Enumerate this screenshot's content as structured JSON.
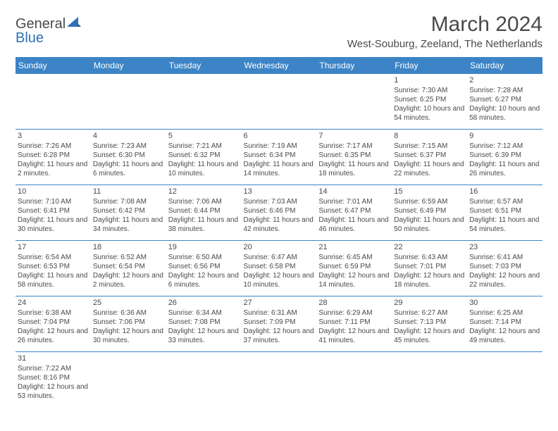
{
  "header": {
    "logo_general": "General",
    "logo_blue": "Blue",
    "month_title": "March 2024",
    "location": "West-Souburg, Zeeland, The Netherlands"
  },
  "colors": {
    "header_bg": "#3c84c6",
    "header_text": "#ffffff",
    "body_text": "#4a4a4a",
    "rule": "#3c84c6",
    "logo_blue": "#2e6fb5"
  },
  "weekdays": [
    "Sunday",
    "Monday",
    "Tuesday",
    "Wednesday",
    "Thursday",
    "Friday",
    "Saturday"
  ],
  "weeks": [
    [
      null,
      null,
      null,
      null,
      null,
      {
        "day": "1",
        "sunrise": "Sunrise: 7:30 AM",
        "sunset": "Sunset: 6:25 PM",
        "daylight": "Daylight: 10 hours and 54 minutes."
      },
      {
        "day": "2",
        "sunrise": "Sunrise: 7:28 AM",
        "sunset": "Sunset: 6:27 PM",
        "daylight": "Daylight: 10 hours and 58 minutes."
      }
    ],
    [
      {
        "day": "3",
        "sunrise": "Sunrise: 7:26 AM",
        "sunset": "Sunset: 6:28 PM",
        "daylight": "Daylight: 11 hours and 2 minutes."
      },
      {
        "day": "4",
        "sunrise": "Sunrise: 7:23 AM",
        "sunset": "Sunset: 6:30 PM",
        "daylight": "Daylight: 11 hours and 6 minutes."
      },
      {
        "day": "5",
        "sunrise": "Sunrise: 7:21 AM",
        "sunset": "Sunset: 6:32 PM",
        "daylight": "Daylight: 11 hours and 10 minutes."
      },
      {
        "day": "6",
        "sunrise": "Sunrise: 7:19 AM",
        "sunset": "Sunset: 6:34 PM",
        "daylight": "Daylight: 11 hours and 14 minutes."
      },
      {
        "day": "7",
        "sunrise": "Sunrise: 7:17 AM",
        "sunset": "Sunset: 6:35 PM",
        "daylight": "Daylight: 11 hours and 18 minutes."
      },
      {
        "day": "8",
        "sunrise": "Sunrise: 7:15 AM",
        "sunset": "Sunset: 6:37 PM",
        "daylight": "Daylight: 11 hours and 22 minutes."
      },
      {
        "day": "9",
        "sunrise": "Sunrise: 7:12 AM",
        "sunset": "Sunset: 6:39 PM",
        "daylight": "Daylight: 11 hours and 26 minutes."
      }
    ],
    [
      {
        "day": "10",
        "sunrise": "Sunrise: 7:10 AM",
        "sunset": "Sunset: 6:41 PM",
        "daylight": "Daylight: 11 hours and 30 minutes."
      },
      {
        "day": "11",
        "sunrise": "Sunrise: 7:08 AM",
        "sunset": "Sunset: 6:42 PM",
        "daylight": "Daylight: 11 hours and 34 minutes."
      },
      {
        "day": "12",
        "sunrise": "Sunrise: 7:06 AM",
        "sunset": "Sunset: 6:44 PM",
        "daylight": "Daylight: 11 hours and 38 minutes."
      },
      {
        "day": "13",
        "sunrise": "Sunrise: 7:03 AM",
        "sunset": "Sunset: 6:46 PM",
        "daylight": "Daylight: 11 hours and 42 minutes."
      },
      {
        "day": "14",
        "sunrise": "Sunrise: 7:01 AM",
        "sunset": "Sunset: 6:47 PM",
        "daylight": "Daylight: 11 hours and 46 minutes."
      },
      {
        "day": "15",
        "sunrise": "Sunrise: 6:59 AM",
        "sunset": "Sunset: 6:49 PM",
        "daylight": "Daylight: 11 hours and 50 minutes."
      },
      {
        "day": "16",
        "sunrise": "Sunrise: 6:57 AM",
        "sunset": "Sunset: 6:51 PM",
        "daylight": "Daylight: 11 hours and 54 minutes."
      }
    ],
    [
      {
        "day": "17",
        "sunrise": "Sunrise: 6:54 AM",
        "sunset": "Sunset: 6:53 PM",
        "daylight": "Daylight: 11 hours and 58 minutes."
      },
      {
        "day": "18",
        "sunrise": "Sunrise: 6:52 AM",
        "sunset": "Sunset: 6:54 PM",
        "daylight": "Daylight: 12 hours and 2 minutes."
      },
      {
        "day": "19",
        "sunrise": "Sunrise: 6:50 AM",
        "sunset": "Sunset: 6:56 PM",
        "daylight": "Daylight: 12 hours and 6 minutes."
      },
      {
        "day": "20",
        "sunrise": "Sunrise: 6:47 AM",
        "sunset": "Sunset: 6:58 PM",
        "daylight": "Daylight: 12 hours and 10 minutes."
      },
      {
        "day": "21",
        "sunrise": "Sunrise: 6:45 AM",
        "sunset": "Sunset: 6:59 PM",
        "daylight": "Daylight: 12 hours and 14 minutes."
      },
      {
        "day": "22",
        "sunrise": "Sunrise: 6:43 AM",
        "sunset": "Sunset: 7:01 PM",
        "daylight": "Daylight: 12 hours and 18 minutes."
      },
      {
        "day": "23",
        "sunrise": "Sunrise: 6:41 AM",
        "sunset": "Sunset: 7:03 PM",
        "daylight": "Daylight: 12 hours and 22 minutes."
      }
    ],
    [
      {
        "day": "24",
        "sunrise": "Sunrise: 6:38 AM",
        "sunset": "Sunset: 7:04 PM",
        "daylight": "Daylight: 12 hours and 26 minutes."
      },
      {
        "day": "25",
        "sunrise": "Sunrise: 6:36 AM",
        "sunset": "Sunset: 7:06 PM",
        "daylight": "Daylight: 12 hours and 30 minutes."
      },
      {
        "day": "26",
        "sunrise": "Sunrise: 6:34 AM",
        "sunset": "Sunset: 7:08 PM",
        "daylight": "Daylight: 12 hours and 33 minutes."
      },
      {
        "day": "27",
        "sunrise": "Sunrise: 6:31 AM",
        "sunset": "Sunset: 7:09 PM",
        "daylight": "Daylight: 12 hours and 37 minutes."
      },
      {
        "day": "28",
        "sunrise": "Sunrise: 6:29 AM",
        "sunset": "Sunset: 7:11 PM",
        "daylight": "Daylight: 12 hours and 41 minutes."
      },
      {
        "day": "29",
        "sunrise": "Sunrise: 6:27 AM",
        "sunset": "Sunset: 7:13 PM",
        "daylight": "Daylight: 12 hours and 45 minutes."
      },
      {
        "day": "30",
        "sunrise": "Sunrise: 6:25 AM",
        "sunset": "Sunset: 7:14 PM",
        "daylight": "Daylight: 12 hours and 49 minutes."
      }
    ],
    [
      {
        "day": "31",
        "sunrise": "Sunrise: 7:22 AM",
        "sunset": "Sunset: 8:16 PM",
        "daylight": "Daylight: 12 hours and 53 minutes."
      },
      null,
      null,
      null,
      null,
      null,
      null
    ]
  ]
}
